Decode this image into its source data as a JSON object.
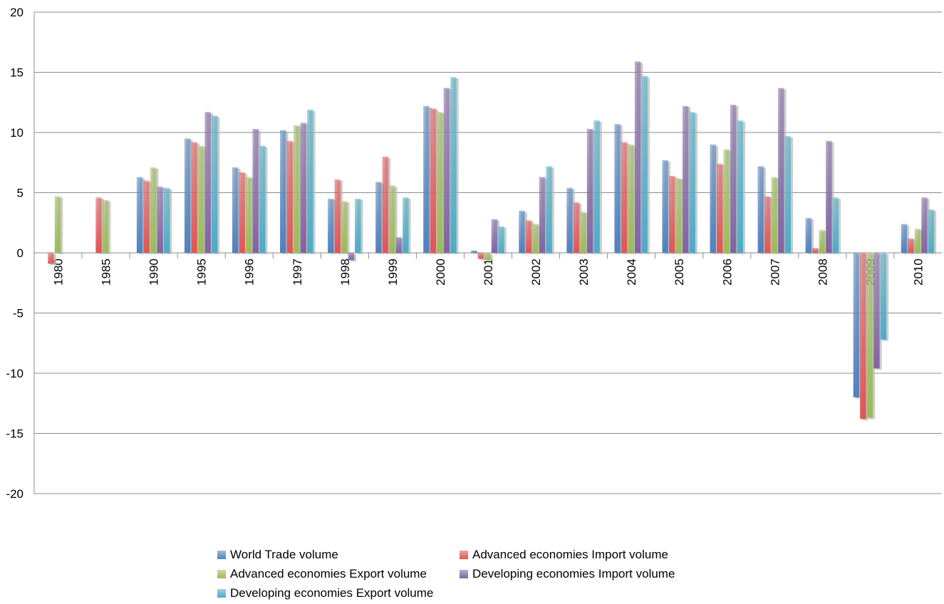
{
  "chart_data": {
    "type": "bar",
    "title": "",
    "xlabel": "",
    "ylabel": "",
    "ylim": [
      -20,
      20
    ],
    "yticks": [
      -20,
      -15,
      -10,
      -5,
      0,
      5,
      10,
      15,
      20
    ],
    "grid": true,
    "legend_position": "bottom",
    "categories": [
      "1980",
      "1985",
      "1990",
      "1995",
      "1996",
      "1997",
      "1998",
      "1999",
      "2000",
      "2001",
      "2002",
      "2003",
      "2004",
      "2005",
      "2006",
      "2007",
      "2008",
      "2009",
      "2010"
    ],
    "series": [
      {
        "name": "World Trade volume",
        "color": "#4F81BD",
        "values": [
          null,
          null,
          6.3,
          9.5,
          7.1,
          10.2,
          4.5,
          5.9,
          12.2,
          0.2,
          3.5,
          5.4,
          10.7,
          7.7,
          9.0,
          7.2,
          2.9,
          -12.0,
          2.4
        ]
      },
      {
        "name": "Advanced economies Import volume",
        "color": "#E05555",
        "values": [
          -0.9,
          4.6,
          6.0,
          9.2,
          6.7,
          9.3,
          6.1,
          8.0,
          12.0,
          -0.5,
          2.7,
          4.2,
          9.2,
          6.4,
          7.4,
          4.7,
          0.4,
          -13.8,
          1.2
        ]
      },
      {
        "name": "Advanced economies Export volume",
        "color": "#9BBB59",
        "values": [
          4.7,
          4.4,
          7.1,
          8.9,
          6.3,
          10.6,
          4.3,
          5.6,
          11.7,
          -0.6,
          2.4,
          3.4,
          9.0,
          6.2,
          8.6,
          6.3,
          1.9,
          -13.7,
          2.0
        ]
      },
      {
        "name": "Developing economies Import volume",
        "color": "#8064A2",
        "values": [
          null,
          null,
          5.5,
          11.7,
          10.3,
          10.8,
          -0.6,
          1.3,
          13.7,
          2.8,
          6.3,
          10.3,
          15.9,
          12.2,
          12.3,
          13.7,
          9.3,
          -9.6,
          4.6
        ]
      },
      {
        "name": "Developing economies Export volume",
        "color": "#4BACC6",
        "values": [
          null,
          null,
          5.4,
          11.4,
          8.9,
          11.9,
          4.5,
          4.6,
          14.6,
          2.2,
          7.2,
          11.0,
          14.7,
          11.7,
          11.0,
          9.7,
          4.6,
          -7.2,
          3.6
        ]
      }
    ]
  }
}
